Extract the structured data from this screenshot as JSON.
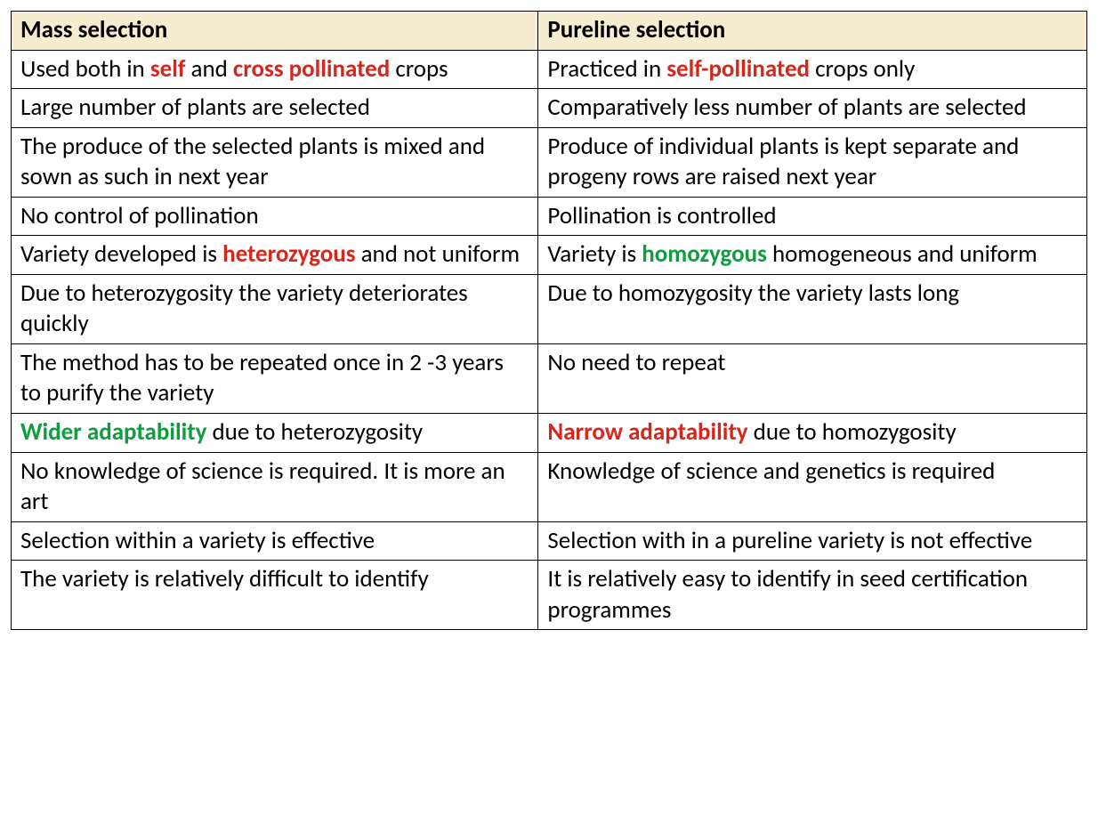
{
  "colors": {
    "header_bg": "#f6edd1",
    "text": "#000000",
    "border": "#000000",
    "red": "#d6271a",
    "green": "#0f9d3f"
  },
  "table": {
    "col1_width_pct": 49,
    "col2_width_pct": 51,
    "headers": [
      "Mass selection",
      "Pureline selection"
    ],
    "rows": [
      {
        "left": [
          {
            "t": "Used both in "
          },
          {
            "t": "self",
            "b": true,
            "c": "red"
          },
          {
            "t": " and "
          },
          {
            "t": "cross pollinated",
            "b": true,
            "c": "red"
          },
          {
            "t": " crops"
          }
        ],
        "right": [
          {
            "t": "Practiced in "
          },
          {
            "t": "self-pollinated",
            "b": true,
            "c": "red"
          },
          {
            "t": " crops only"
          }
        ]
      },
      {
        "left": [
          {
            "t": "Large number of plants are selected"
          }
        ],
        "right": [
          {
            "t": "Comparatively less number of plants are selected"
          }
        ]
      },
      {
        "left": [
          {
            "t": "The produce of the selected plants is mixed and sown as such in next year"
          }
        ],
        "right": [
          {
            "t": "Produce of individual plants is kept separate and progeny rows are raised next year"
          }
        ]
      },
      {
        "left": [
          {
            "t": "No control of pollination"
          }
        ],
        "right": [
          {
            "t": "Pollination is controlled"
          }
        ]
      },
      {
        "left": [
          {
            "t": "Variety developed is "
          },
          {
            "t": "heterozygous",
            "b": true,
            "c": "red"
          },
          {
            "t": " and not uniform"
          }
        ],
        "right": [
          {
            "t": "Variety is "
          },
          {
            "t": "homozygous",
            "b": true,
            "c": "green"
          },
          {
            "t": " homogeneous and uniform"
          }
        ]
      },
      {
        "left": [
          {
            "t": "Due to heterozygosity the variety deteriorates quickly"
          }
        ],
        "right": [
          {
            "t": "Due to homozygosity the variety lasts long"
          }
        ]
      },
      {
        "left": [
          {
            "t": "The method has to be repeated once in 2 -3 years to purify the variety"
          }
        ],
        "right": [
          {
            "t": "No need to repeat"
          }
        ]
      },
      {
        "left": [
          {
            "t": "Wider adaptability",
            "b": true,
            "c": "green"
          },
          {
            "t": " due to heterozygosity"
          }
        ],
        "right": [
          {
            "t": "Narrow adaptability",
            "b": true,
            "c": "red"
          },
          {
            "t": " due to homozygosity"
          }
        ]
      },
      {
        "left": [
          {
            "t": "No knowledge of science is required.  It is more an art"
          }
        ],
        "right": [
          {
            "t": "Knowledge of science and genetics is required"
          }
        ],
        "right_extra_pad": true
      },
      {
        "left": [
          {
            "t": "Selection within a variety is effective"
          }
        ],
        "right": [
          {
            "t": "Selection with in a pureline variety is not effective"
          }
        ]
      },
      {
        "left": [
          {
            "t": "The variety is relatively difficult to identify"
          }
        ],
        "right": [
          {
            "t": "It is relatively easy to identify in seed certification programmes"
          }
        ]
      }
    ]
  }
}
